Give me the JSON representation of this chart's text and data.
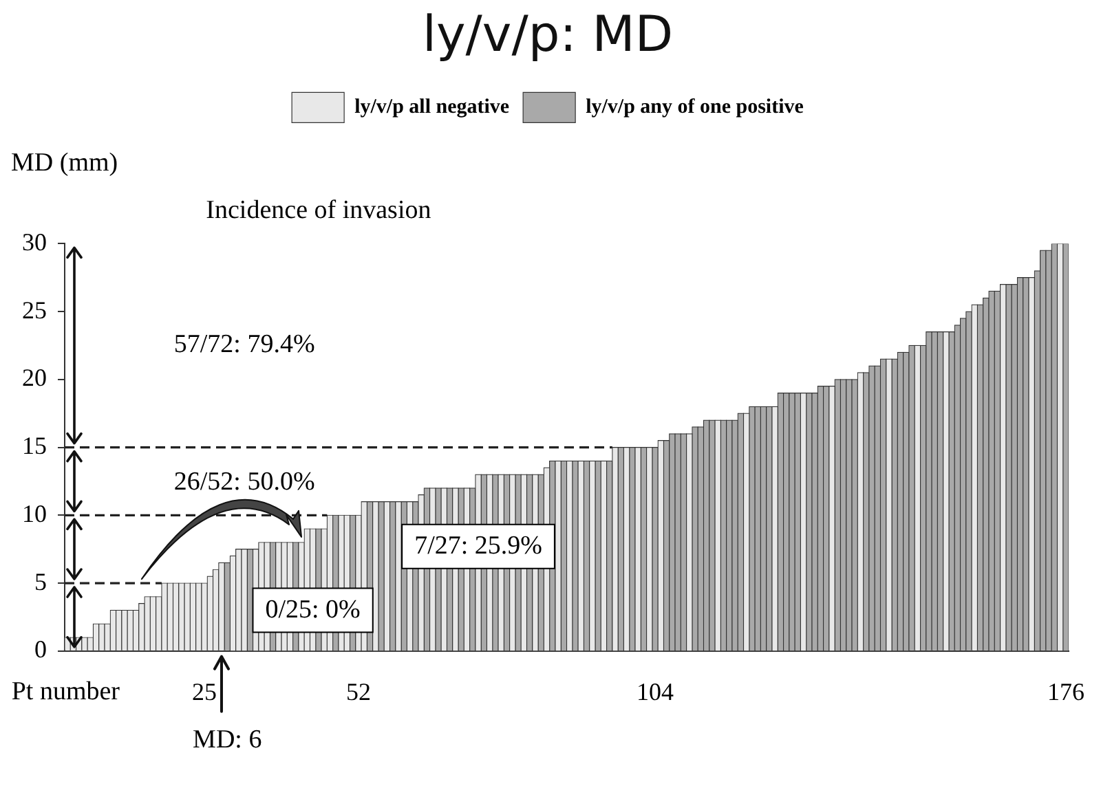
{
  "chart_data": {
    "type": "bar",
    "title": "ly/v/p: MD",
    "xlabel": "Pt number",
    "ylabel": "MD (mm)",
    "categories": [
      null,
      null,
      null,
      null,
      null,
      null,
      null,
      null,
      null,
      null,
      null,
      null,
      null,
      null,
      null,
      null,
      null,
      null,
      null,
      null,
      null,
      null,
      null,
      null,
      "25",
      null,
      null,
      null,
      null,
      null,
      null,
      null,
      null,
      null,
      null,
      null,
      null,
      null,
      null,
      null,
      null,
      null,
      null,
      null,
      null,
      null,
      null,
      null,
      null,
      null,
      null,
      "52",
      null,
      null,
      null,
      null,
      null,
      null,
      null,
      null,
      null,
      null,
      null,
      null,
      null,
      null,
      null,
      null,
      null,
      null,
      null,
      null,
      null,
      null,
      null,
      null,
      null,
      null,
      null,
      null,
      null,
      null,
      null,
      null,
      null,
      null,
      null,
      null,
      null,
      null,
      null,
      null,
      null,
      null,
      null,
      null,
      null,
      null,
      null,
      null,
      null,
      null,
      null,
      "104",
      null,
      null,
      null,
      null,
      null,
      null,
      null,
      null,
      null,
      null,
      null,
      null,
      null,
      null,
      null,
      null,
      null,
      null,
      null,
      null,
      null,
      null,
      null,
      null,
      null,
      null,
      null,
      null,
      null,
      null,
      null,
      null,
      null,
      null,
      null,
      null,
      null,
      null,
      null,
      null,
      null,
      null,
      null,
      null,
      null,
      null,
      null,
      null,
      null,
      null,
      null,
      null,
      null,
      null,
      null,
      null,
      null,
      null,
      null,
      null,
      null,
      null,
      null,
      null,
      null,
      null,
      null,
      null,
      null,
      null,
      null,
      "176"
    ],
    "series": [
      {
        "name": "ly/v/p all negative",
        "color": "#e8e8e8",
        "values": [
          1,
          1,
          1,
          1,
          1,
          2,
          2,
          2,
          3,
          3,
          3,
          3,
          3,
          3.5,
          4,
          4,
          4,
          5,
          5,
          5,
          5,
          5,
          5,
          5,
          5,
          5.5,
          6,
          6.5,
          null,
          7,
          7.5,
          7.5,
          null,
          7.5,
          8,
          8,
          null,
          8,
          8,
          8,
          null,
          8,
          9,
          9,
          null,
          9,
          10,
          null,
          10,
          10,
          null,
          10,
          11,
          null,
          11,
          null,
          11,
          null,
          11,
          null,
          11,
          null,
          11.5,
          null,
          12,
          null,
          12,
          null,
          12,
          null,
          12,
          null,
          13,
          null,
          13,
          null,
          13,
          null,
          13,
          null,
          13,
          null,
          13,
          null,
          13.5,
          null,
          14,
          null,
          14,
          null,
          14,
          null,
          14,
          null,
          14,
          null,
          15,
          null,
          15,
          null,
          15,
          null,
          15,
          null,
          15.5,
          null,
          null,
          null,
          null,
          16,
          null,
          null,
          null,
          null,
          17,
          null,
          null,
          null,
          null,
          17.5,
          null,
          null,
          null,
          null,
          18,
          null,
          null,
          null,
          null,
          19,
          null,
          null,
          null,
          null,
          19.5,
          null,
          null,
          null,
          null,
          20.5,
          null,
          null,
          null,
          null,
          21.5,
          null,
          null,
          null,
          null,
          22.5,
          null,
          null,
          null,
          null,
          23.5,
          null,
          null,
          null,
          null,
          25.5,
          null,
          null,
          null,
          null,
          27,
          null,
          null,
          null,
          null,
          27.5,
          null,
          null,
          null,
          null,
          30,
          null
        ]
      },
      {
        "name": "ly/v/p any of one positive",
        "color": "#a9a9a9",
        "values": [
          null,
          null,
          null,
          null,
          null,
          null,
          null,
          null,
          null,
          null,
          null,
          null,
          null,
          null,
          null,
          null,
          null,
          null,
          null,
          null,
          null,
          null,
          null,
          null,
          null,
          null,
          null,
          null,
          6.5,
          null,
          null,
          null,
          7.5,
          null,
          null,
          null,
          8,
          null,
          null,
          null,
          8,
          null,
          null,
          null,
          9,
          null,
          null,
          10,
          null,
          null,
          10,
          null,
          null,
          11,
          null,
          11,
          null,
          11,
          null,
          11,
          null,
          11,
          null,
          12,
          null,
          12,
          null,
          12,
          null,
          12,
          null,
          12,
          null,
          13,
          null,
          13,
          null,
          13,
          null,
          13,
          null,
          13,
          null,
          13,
          null,
          14,
          null,
          14,
          null,
          14,
          null,
          14,
          null,
          14,
          null,
          14,
          null,
          15,
          null,
          15,
          null,
          15,
          null,
          15,
          null,
          15.5,
          16,
          16,
          16,
          null,
          16.5,
          16.5,
          17,
          17,
          null,
          17,
          17,
          17,
          17.5,
          null,
          18,
          18,
          18,
          18,
          null,
          19,
          19,
          19,
          19,
          null,
          19,
          19,
          19.5,
          19.5,
          null,
          20,
          20,
          20,
          20,
          null,
          20.5,
          21,
          21,
          21.5,
          null,
          21.5,
          22,
          22,
          22.5,
          null,
          22.5,
          23.5,
          23.5,
          23.5,
          null,
          23.5,
          24,
          24.5,
          25,
          null,
          25.5,
          26,
          26.5,
          26.5,
          null,
          27,
          27,
          27.5,
          27.5,
          null,
          28,
          29.5,
          29.5,
          30,
          null,
          30
        ]
      }
    ],
    "ylim": [
      0,
      30
    ],
    "yticks": [
      0,
      5,
      10,
      15,
      20,
      25,
      30
    ],
    "legend": "top",
    "ref_lines": [
      {
        "axis": "y",
        "value": 5,
        "color": "#222222",
        "line_style": "dashed"
      },
      {
        "axis": "y",
        "value": 10,
        "color": "#222222",
        "line_style": "dashed"
      },
      {
        "axis": "y",
        "value": 15,
        "color": "#222222",
        "line_style": "dashed"
      }
    ],
    "annotations": [
      "Incidence of invasion",
      "57/72: 79.4%",
      "26/52: 50.0%",
      "7/27: 25.9%",
      "0/25: 0%",
      "MD: 6"
    ]
  }
}
